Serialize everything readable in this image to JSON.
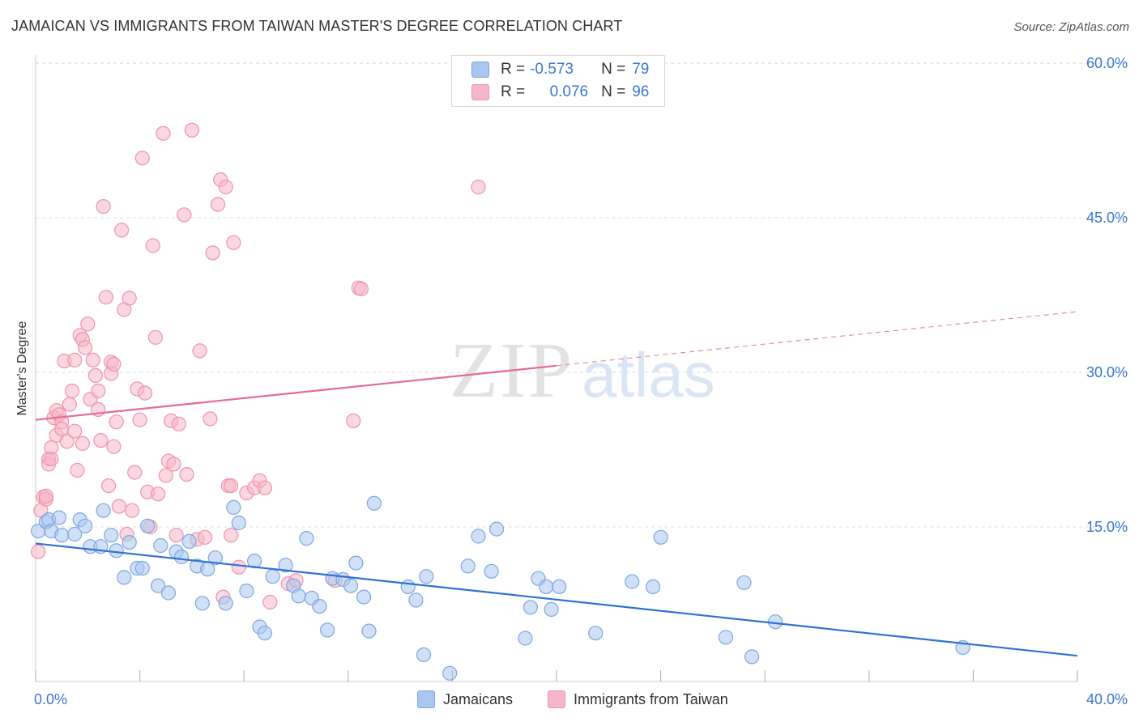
{
  "title": "JAMAICAN VS IMMIGRANTS FROM TAIWAN MASTER'S DEGREE CORRELATION CHART",
  "source": "Source: ZipAtlas.com",
  "watermark": {
    "zip": "ZIP",
    "atlas": "atlas"
  },
  "colors": {
    "blue_fill": "#a9c6f0",
    "blue_stroke": "#7ea6e0",
    "blue_line": "#2f72d4",
    "pink_fill": "#f6b6c9",
    "pink_stroke": "#ee93b0",
    "pink_line": "#e56a94",
    "tick_label": "#3a76d2",
    "grid": "#dddddd"
  },
  "legend": {
    "rows": [
      {
        "r_label": "R =",
        "r_value": "-0.573",
        "n_label": "N =",
        "n_value": "79"
      },
      {
        "r_label": "R =",
        "r_value": "0.076",
        "n_label": "N =",
        "n_value": "96"
      }
    ]
  },
  "bottom_legend": {
    "jamaicans": "Jamaicans",
    "taiwan": "Immigrants from Taiwan"
  },
  "chart_data": {
    "type": "scatter",
    "title": "JAMAICAN VS IMMIGRANTS FROM TAIWAN MASTER'S DEGREE CORRELATION CHART",
    "xlabel": "",
    "ylabel": "Master's Degree",
    "xlim": [
      0,
      40
    ],
    "ylim": [
      0,
      63
    ],
    "x_ticks_labeled": [
      {
        "value": 0,
        "label": "0.0%"
      },
      {
        "value": 40,
        "label": "40.0%"
      }
    ],
    "y_ticks": [
      {
        "value": 15,
        "label": "15.0%"
      },
      {
        "value": 30,
        "label": "30.0%"
      },
      {
        "value": 45,
        "label": "45.0%"
      },
      {
        "value": 60,
        "label": "60.0%"
      }
    ],
    "grid": true,
    "legend_position": "top-center",
    "series": [
      {
        "name": "Jamaicans",
        "color": "#a9c6f0",
        "r": -0.573,
        "n": 79,
        "trend": {
          "x": [
            0,
            40
          ],
          "y": [
            13.4,
            2.5
          ],
          "style": "solid"
        },
        "points": [
          [
            0.1,
            14.6
          ],
          [
            0.4,
            15.5
          ],
          [
            0.5,
            15.7
          ],
          [
            0.6,
            14.6
          ],
          [
            0.9,
            15.9
          ],
          [
            1.0,
            14.2
          ],
          [
            1.5,
            14.3
          ],
          [
            1.7,
            15.7
          ],
          [
            1.9,
            15.1
          ],
          [
            2.1,
            13.1
          ],
          [
            2.5,
            13.1
          ],
          [
            2.6,
            16.6
          ],
          [
            2.9,
            14.2
          ],
          [
            3.1,
            12.7
          ],
          [
            3.4,
            10.1
          ],
          [
            3.6,
            13.5
          ],
          [
            3.9,
            11.0
          ],
          [
            4.1,
            11.0
          ],
          [
            4.3,
            15.1
          ],
          [
            4.7,
            9.3
          ],
          [
            4.8,
            13.2
          ],
          [
            5.1,
            8.6
          ],
          [
            5.4,
            12.6
          ],
          [
            5.6,
            12.1
          ],
          [
            5.9,
            13.6
          ],
          [
            6.2,
            11.2
          ],
          [
            6.4,
            7.6
          ],
          [
            6.6,
            10.9
          ],
          [
            6.9,
            12.0
          ],
          [
            7.3,
            7.6
          ],
          [
            7.6,
            16.9
          ],
          [
            7.8,
            15.4
          ],
          [
            8.1,
            8.8
          ],
          [
            8.4,
            11.7
          ],
          [
            8.6,
            5.3
          ],
          [
            8.8,
            4.7
          ],
          [
            9.1,
            10.2
          ],
          [
            9.6,
            11.3
          ],
          [
            9.9,
            9.3
          ],
          [
            10.1,
            8.3
          ],
          [
            10.4,
            13.9
          ],
          [
            10.6,
            8.1
          ],
          [
            10.9,
            7.3
          ],
          [
            11.2,
            5.0
          ],
          [
            11.4,
            10.0
          ],
          [
            11.8,
            9.9
          ],
          [
            12.1,
            9.3
          ],
          [
            12.3,
            11.5
          ],
          [
            12.6,
            8.2
          ],
          [
            12.8,
            4.9
          ],
          [
            13.0,
            17.3
          ],
          [
            14.3,
            9.2
          ],
          [
            14.6,
            7.9
          ],
          [
            14.9,
            2.6
          ],
          [
            15.0,
            10.2
          ],
          [
            15.9,
            0.8
          ],
          [
            16.6,
            11.2
          ],
          [
            17.0,
            14.1
          ],
          [
            17.5,
            10.7
          ],
          [
            17.7,
            14.8
          ],
          [
            18.8,
            4.2
          ],
          [
            19.0,
            7.2
          ],
          [
            19.3,
            10.0
          ],
          [
            19.6,
            9.2
          ],
          [
            19.8,
            7.0
          ],
          [
            20.1,
            9.2
          ],
          [
            21.5,
            4.7
          ],
          [
            22.9,
            9.7
          ],
          [
            23.7,
            9.2
          ],
          [
            24.0,
            14.0
          ],
          [
            26.5,
            4.3
          ],
          [
            27.2,
            9.6
          ],
          [
            27.5,
            2.4
          ],
          [
            28.4,
            5.8
          ],
          [
            35.6,
            3.3
          ]
        ]
      },
      {
        "name": "Immigrants from Taiwan",
        "color": "#f6b6c9",
        "r": 0.076,
        "n": 96,
        "trend": {
          "x": [
            0,
            40
          ],
          "y": [
            25.4,
            35.9
          ],
          "style": "solid-then-dashed",
          "solid_until_x": 20
        },
        "points": [
          [
            0.1,
            12.6
          ],
          [
            0.2,
            16.6
          ],
          [
            0.3,
            17.9
          ],
          [
            0.4,
            17.7
          ],
          [
            0.4,
            18.0
          ],
          [
            0.5,
            21.6
          ],
          [
            0.5,
            21.1
          ],
          [
            0.6,
            22.7
          ],
          [
            0.6,
            21.6
          ],
          [
            0.7,
            25.6
          ],
          [
            0.8,
            23.9
          ],
          [
            0.8,
            26.3
          ],
          [
            0.9,
            25.9
          ],
          [
            1.0,
            25.2
          ],
          [
            1.0,
            24.5
          ],
          [
            1.1,
            31.1
          ],
          [
            1.2,
            23.3
          ],
          [
            1.3,
            26.9
          ],
          [
            1.4,
            28.2
          ],
          [
            1.5,
            24.3
          ],
          [
            1.5,
            31.2
          ],
          [
            1.6,
            20.5
          ],
          [
            1.7,
            33.6
          ],
          [
            1.8,
            23.1
          ],
          [
            1.8,
            33.2
          ],
          [
            1.9,
            32.4
          ],
          [
            2.0,
            34.7
          ],
          [
            2.1,
            27.4
          ],
          [
            2.2,
            31.2
          ],
          [
            2.3,
            29.7
          ],
          [
            2.4,
            26.4
          ],
          [
            2.4,
            28.2
          ],
          [
            2.5,
            23.4
          ],
          [
            2.6,
            46.1
          ],
          [
            2.7,
            37.3
          ],
          [
            2.8,
            19.0
          ],
          [
            2.9,
            31.0
          ],
          [
            2.9,
            29.9
          ],
          [
            3.0,
            30.8
          ],
          [
            3.0,
            22.8
          ],
          [
            3.1,
            25.2
          ],
          [
            3.2,
            17.0
          ],
          [
            3.3,
            43.8
          ],
          [
            3.4,
            36.1
          ],
          [
            3.5,
            14.3
          ],
          [
            3.6,
            37.2
          ],
          [
            3.7,
            16.6
          ],
          [
            3.8,
            20.3
          ],
          [
            3.9,
            28.4
          ],
          [
            4.0,
            25.4
          ],
          [
            4.1,
            50.8
          ],
          [
            4.2,
            28.0
          ],
          [
            4.3,
            18.4
          ],
          [
            4.4,
            15.0
          ],
          [
            4.5,
            42.3
          ],
          [
            4.6,
            33.4
          ],
          [
            4.7,
            18.2
          ],
          [
            4.9,
            53.2
          ],
          [
            5.0,
            20.0
          ],
          [
            5.1,
            21.4
          ],
          [
            5.2,
            25.3
          ],
          [
            5.3,
            21.1
          ],
          [
            5.4,
            14.2
          ],
          [
            5.5,
            25.0
          ],
          [
            5.7,
            45.3
          ],
          [
            5.8,
            20.1
          ],
          [
            6.0,
            53.5
          ],
          [
            6.2,
            13.8
          ],
          [
            6.3,
            32.1
          ],
          [
            6.5,
            14.0
          ],
          [
            6.7,
            25.5
          ],
          [
            6.8,
            41.6
          ],
          [
            7.0,
            46.3
          ],
          [
            7.1,
            48.7
          ],
          [
            7.2,
            8.2
          ],
          [
            7.3,
            48.0
          ],
          [
            7.4,
            19.0
          ],
          [
            7.5,
            14.2
          ],
          [
            7.5,
            19.0
          ],
          [
            7.6,
            42.6
          ],
          [
            7.8,
            11.1
          ],
          [
            8.1,
            18.3
          ],
          [
            8.4,
            18.8
          ],
          [
            8.6,
            19.5
          ],
          [
            8.8,
            18.8
          ],
          [
            9.0,
            7.7
          ],
          [
            9.7,
            9.5
          ],
          [
            10.0,
            9.8
          ],
          [
            11.5,
            9.8
          ],
          [
            12.2,
            25.3
          ],
          [
            12.4,
            38.2
          ],
          [
            12.5,
            38.1
          ],
          [
            17.0,
            48.0
          ]
        ]
      }
    ]
  }
}
